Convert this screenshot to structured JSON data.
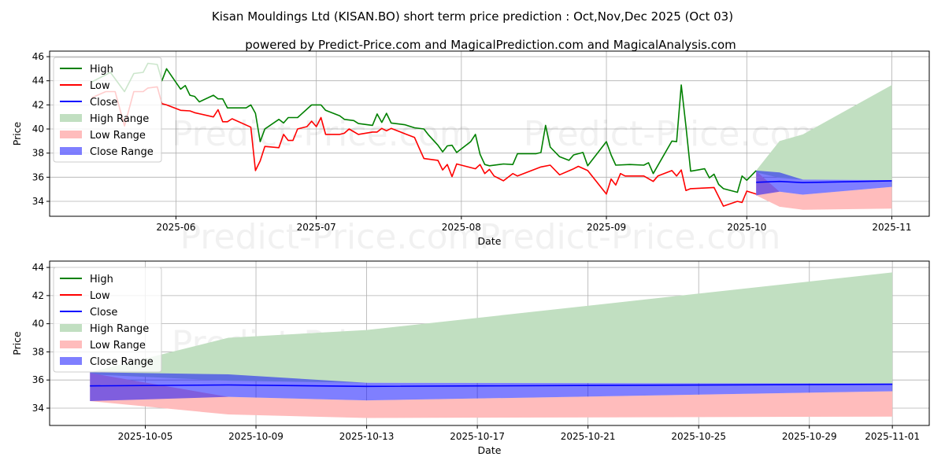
{
  "title": "Kisan Mouldings Ltd (KISAN.BO) short term price prediction : Oct,Nov,Dec 2025 (Oct 03)",
  "subtitle": "powered by Predict-Price.com and MagicalPrediction.com and MagicalAnalysis.com",
  "watermark": "Predict-Price.com",
  "colors": {
    "high": "#008000",
    "low": "#ff0000",
    "close": "#0000ff",
    "high_range": "#c1dfc1",
    "low_range": "#ffbcbc",
    "close_range": "#7f7fff"
  },
  "chart_data": [
    {
      "type": "line",
      "name": "history-and-forecast",
      "xlabel": "Date",
      "ylabel": "Price",
      "xlim": [
        "2025-05-05",
        "2025-11-09"
      ],
      "ylim": [
        32.76,
        46.46
      ],
      "grid": true,
      "legend_placement": "upper-left",
      "x_ticks": [
        {
          "date": "2025-06-01",
          "label": "2025-06"
        },
        {
          "date": "2025-07-01",
          "label": "2025-07"
        },
        {
          "date": "2025-08-01",
          "label": "2025-08"
        },
        {
          "date": "2025-09-01",
          "label": "2025-09"
        },
        {
          "date": "2025-10-01",
          "label": "2025-10"
        },
        {
          "date": "2025-11-01",
          "label": "2025-11"
        }
      ],
      "y_ticks": [
        "34",
        "36",
        "38",
        "40",
        "42",
        "44",
        "46"
      ],
      "legend": [
        "High",
        "Low",
        "Close",
        "High Range",
        "Low Range",
        "Close Range"
      ],
      "history": {
        "high": [
          [
            "2025-05-14",
            43.9
          ],
          [
            "2025-05-18",
            44.7
          ],
          [
            "2025-05-21",
            43.1
          ],
          [
            "2025-05-23",
            44.6
          ],
          [
            "2025-05-25",
            44.7
          ],
          [
            "2025-05-26",
            45.45
          ],
          [
            "2025-05-28",
            45.35
          ],
          [
            "2025-05-29",
            44.0
          ],
          [
            "2025-05-30",
            45.0
          ],
          [
            "2025-06-02",
            43.3
          ],
          [
            "2025-06-03",
            43.6
          ],
          [
            "2025-06-04",
            42.8
          ],
          [
            "2025-06-05",
            42.7
          ],
          [
            "2025-06-06",
            42.25
          ],
          [
            "2025-06-09",
            42.8
          ],
          [
            "2025-06-10",
            42.5
          ],
          [
            "2025-06-11",
            42.5
          ],
          [
            "2025-06-12",
            41.75
          ],
          [
            "2025-06-16",
            41.75
          ],
          [
            "2025-06-17",
            42.0
          ],
          [
            "2025-06-18",
            41.3
          ],
          [
            "2025-06-19",
            38.95
          ],
          [
            "2025-06-20",
            40.0
          ],
          [
            "2025-06-23",
            40.8
          ],
          [
            "2025-06-24",
            40.5
          ],
          [
            "2025-06-25",
            40.95
          ],
          [
            "2025-06-27",
            40.95
          ],
          [
            "2025-06-30",
            42.0
          ],
          [
            "2025-07-02",
            42.0
          ],
          [
            "2025-07-03",
            41.55
          ],
          [
            "2025-07-06",
            41.1
          ],
          [
            "2025-07-07",
            40.8
          ],
          [
            "2025-07-09",
            40.7
          ],
          [
            "2025-07-10",
            40.45
          ],
          [
            "2025-07-13",
            40.3
          ],
          [
            "2025-07-14",
            41.25
          ],
          [
            "2025-07-15",
            40.55
          ],
          [
            "2025-07-16",
            41.3
          ],
          [
            "2025-07-17",
            40.5
          ],
          [
            "2025-07-20",
            40.35
          ],
          [
            "2025-07-22",
            40.1
          ],
          [
            "2025-07-24",
            40.0
          ],
          [
            "2025-07-25",
            39.5
          ],
          [
            "2025-07-27",
            38.65
          ],
          [
            "2025-07-28",
            38.1
          ],
          [
            "2025-07-29",
            38.6
          ],
          [
            "2025-07-30",
            38.65
          ],
          [
            "2025-07-31",
            38.05
          ],
          [
            "2025-08-03",
            38.95
          ],
          [
            "2025-08-04",
            39.55
          ],
          [
            "2025-08-05",
            37.9
          ],
          [
            "2025-08-06",
            37.05
          ],
          [
            "2025-08-07",
            36.95
          ],
          [
            "2025-08-10",
            37.1
          ],
          [
            "2025-08-12",
            37.05
          ],
          [
            "2025-08-13",
            37.95
          ],
          [
            "2025-08-17",
            37.95
          ],
          [
            "2025-08-18",
            38.05
          ],
          [
            "2025-08-19",
            40.3
          ],
          [
            "2025-08-20",
            38.5
          ],
          [
            "2025-08-22",
            37.7
          ],
          [
            "2025-08-24",
            37.4
          ],
          [
            "2025-08-25",
            37.85
          ],
          [
            "2025-08-27",
            38.05
          ],
          [
            "2025-08-28",
            36.95
          ],
          [
            "2025-09-01",
            38.95
          ],
          [
            "2025-09-02",
            37.85
          ],
          [
            "2025-09-03",
            37.0
          ],
          [
            "2025-09-06",
            37.05
          ],
          [
            "2025-09-09",
            37.0
          ],
          [
            "2025-09-10",
            37.2
          ],
          [
            "2025-09-11",
            36.3
          ],
          [
            "2025-09-15",
            39.0
          ],
          [
            "2025-09-16",
            38.95
          ],
          [
            "2025-09-17",
            43.65
          ],
          [
            "2025-09-18",
            40.25
          ],
          [
            "2025-09-19",
            36.5
          ],
          [
            "2025-09-22",
            36.7
          ],
          [
            "2025-09-23",
            35.95
          ],
          [
            "2025-09-24",
            36.25
          ],
          [
            "2025-09-25",
            35.4
          ],
          [
            "2025-09-26",
            35.05
          ],
          [
            "2025-09-29",
            34.75
          ],
          [
            "2025-09-30",
            36.1
          ],
          [
            "2025-10-01",
            35.75
          ],
          [
            "2025-10-03",
            36.55
          ]
        ],
        "low": [
          [
            "2025-05-14",
            42.6
          ],
          [
            "2025-05-17",
            43.1
          ],
          [
            "2025-05-19",
            43.1
          ],
          [
            "2025-05-21",
            40.25
          ],
          [
            "2025-05-23",
            43.1
          ],
          [
            "2025-05-25",
            43.1
          ],
          [
            "2025-05-26",
            43.4
          ],
          [
            "2025-05-28",
            43.5
          ],
          [
            "2025-05-29",
            42.1
          ],
          [
            "2025-05-30",
            42.0
          ],
          [
            "2025-06-02",
            41.55
          ],
          [
            "2025-06-04",
            41.5
          ],
          [
            "2025-06-05",
            41.35
          ],
          [
            "2025-06-09",
            41.0
          ],
          [
            "2025-06-10",
            41.6
          ],
          [
            "2025-06-11",
            40.6
          ],
          [
            "2025-06-12",
            40.6
          ],
          [
            "2025-06-13",
            40.85
          ],
          [
            "2025-06-17",
            40.15
          ],
          [
            "2025-06-18",
            36.55
          ],
          [
            "2025-06-19",
            37.35
          ],
          [
            "2025-06-20",
            38.55
          ],
          [
            "2025-06-23",
            38.45
          ],
          [
            "2025-06-24",
            39.55
          ],
          [
            "2025-06-25",
            39.05
          ],
          [
            "2025-06-26",
            39.05
          ],
          [
            "2025-06-27",
            40.0
          ],
          [
            "2025-06-29",
            40.2
          ],
          [
            "2025-06-30",
            40.65
          ],
          [
            "2025-07-01",
            40.2
          ],
          [
            "2025-07-02",
            40.95
          ],
          [
            "2025-07-03",
            39.55
          ],
          [
            "2025-07-06",
            39.55
          ],
          [
            "2025-07-07",
            39.65
          ],
          [
            "2025-07-08",
            40.0
          ],
          [
            "2025-07-10",
            39.55
          ],
          [
            "2025-07-13",
            39.75
          ],
          [
            "2025-07-14",
            39.75
          ],
          [
            "2025-07-15",
            40.05
          ],
          [
            "2025-07-16",
            39.85
          ],
          [
            "2025-07-17",
            40.05
          ],
          [
            "2025-07-20",
            39.6
          ],
          [
            "2025-07-22",
            39.3
          ],
          [
            "2025-07-23",
            38.4
          ],
          [
            "2025-07-24",
            37.55
          ],
          [
            "2025-07-27",
            37.4
          ],
          [
            "2025-07-28",
            36.6
          ],
          [
            "2025-07-29",
            37.05
          ],
          [
            "2025-07-30",
            36.05
          ],
          [
            "2025-07-31",
            37.1
          ],
          [
            "2025-08-04",
            36.7
          ],
          [
            "2025-08-05",
            37.05
          ],
          [
            "2025-08-06",
            36.3
          ],
          [
            "2025-08-07",
            36.65
          ],
          [
            "2025-08-08",
            36.1
          ],
          [
            "2025-08-10",
            35.7
          ],
          [
            "2025-08-12",
            36.3
          ],
          [
            "2025-08-13",
            36.1
          ],
          [
            "2025-08-18",
            36.85
          ],
          [
            "2025-08-20",
            37.0
          ],
          [
            "2025-08-22",
            36.2
          ],
          [
            "2025-08-25",
            36.7
          ],
          [
            "2025-08-26",
            36.9
          ],
          [
            "2025-08-28",
            36.55
          ],
          [
            "2025-09-01",
            34.6
          ],
          [
            "2025-09-02",
            35.85
          ],
          [
            "2025-09-03",
            35.35
          ],
          [
            "2025-09-04",
            36.3
          ],
          [
            "2025-09-05",
            36.1
          ],
          [
            "2025-09-09",
            36.1
          ],
          [
            "2025-09-11",
            35.65
          ],
          [
            "2025-09-12",
            36.1
          ],
          [
            "2025-09-15",
            36.55
          ],
          [
            "2025-09-16",
            36.1
          ],
          [
            "2025-09-17",
            36.6
          ],
          [
            "2025-09-18",
            34.9
          ],
          [
            "2025-09-19",
            35.05
          ],
          [
            "2025-09-22",
            35.1
          ],
          [
            "2025-09-24",
            35.15
          ],
          [
            "2025-09-26",
            33.6
          ],
          [
            "2025-09-29",
            34.0
          ],
          [
            "2025-09-30",
            33.9
          ],
          [
            "2025-10-01",
            34.85
          ],
          [
            "2025-10-03",
            34.6
          ]
        ]
      }
    },
    {
      "type": "area",
      "name": "forecast-detail",
      "xlabel": "Date",
      "ylabel": "Price",
      "xlim": [
        "2025-10-01T13:00",
        "2025-11-02T08:00"
      ],
      "ylim": [
        32.77,
        44.45
      ],
      "grid": true,
      "legend_placement": "upper-left",
      "x_ticks": [
        {
          "date": "2025-10-05",
          "label": "2025-10-05"
        },
        {
          "date": "2025-10-09",
          "label": "2025-10-09"
        },
        {
          "date": "2025-10-13",
          "label": "2025-10-13"
        },
        {
          "date": "2025-10-17",
          "label": "2025-10-17"
        },
        {
          "date": "2025-10-21",
          "label": "2025-10-21"
        },
        {
          "date": "2025-10-25",
          "label": "2025-10-25"
        },
        {
          "date": "2025-10-29",
          "label": "2025-10-29"
        },
        {
          "date": "2025-11-01",
          "label": "2025-11-01"
        }
      ],
      "y_ticks": [
        "34",
        "36",
        "38",
        "40",
        "42",
        "44"
      ],
      "legend": [
        "High",
        "Low",
        "Close",
        "High Range",
        "Low Range",
        "Close Range"
      ]
    }
  ],
  "forecast": {
    "dates": [
      "2025-10-03",
      "2025-10-08",
      "2025-10-13",
      "2025-11-01"
    ],
    "high_range": {
      "upper": [
        36.55,
        39.0,
        39.55,
        43.65
      ],
      "lower": [
        36.4,
        35.95,
        35.8,
        35.75
      ]
    },
    "close_range": {
      "upper": [
        36.55,
        36.4,
        35.8,
        35.75
      ],
      "lower": [
        34.5,
        34.8,
        34.55,
        35.2
      ]
    },
    "low_range": {
      "upper": [
        36.5,
        34.8,
        34.55,
        35.2
      ],
      "lower": [
        34.5,
        33.55,
        33.3,
        33.4
      ]
    },
    "close": [
      35.58,
      35.65,
      35.55,
      35.7
    ]
  }
}
